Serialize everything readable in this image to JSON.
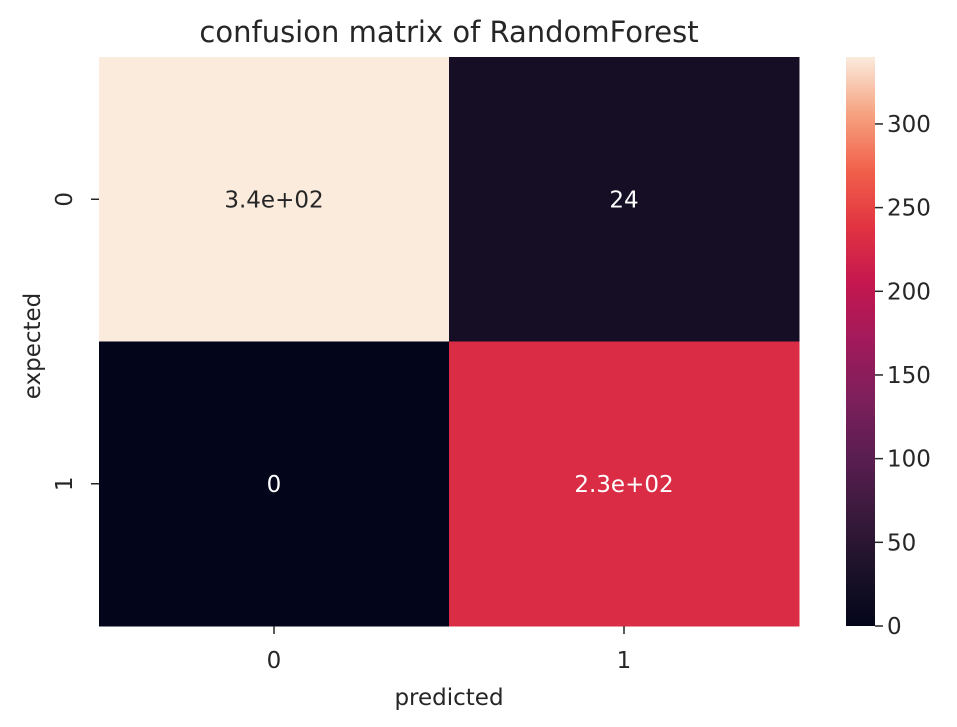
{
  "chart_data": {
    "type": "heatmap",
    "title": "confusion matrix of RandomForest",
    "xlabel": "predicted",
    "ylabel": "expected",
    "x_categories": [
      "0",
      "1"
    ],
    "y_categories": [
      "0",
      "1"
    ],
    "values": [
      [
        340,
        24
      ],
      [
        0,
        230
      ]
    ],
    "annotations": [
      [
        "3.4e+02",
        "24"
      ],
      [
        "0",
        "2.3e+02"
      ]
    ],
    "colormap": "rocket",
    "colorbar": {
      "range": [
        0,
        340
      ],
      "ticks": [
        0,
        50,
        100,
        150,
        200,
        250,
        300
      ],
      "tick_labels": [
        "0",
        "50",
        "100",
        "150",
        "200",
        "250",
        "300"
      ]
    },
    "grid": false
  }
}
